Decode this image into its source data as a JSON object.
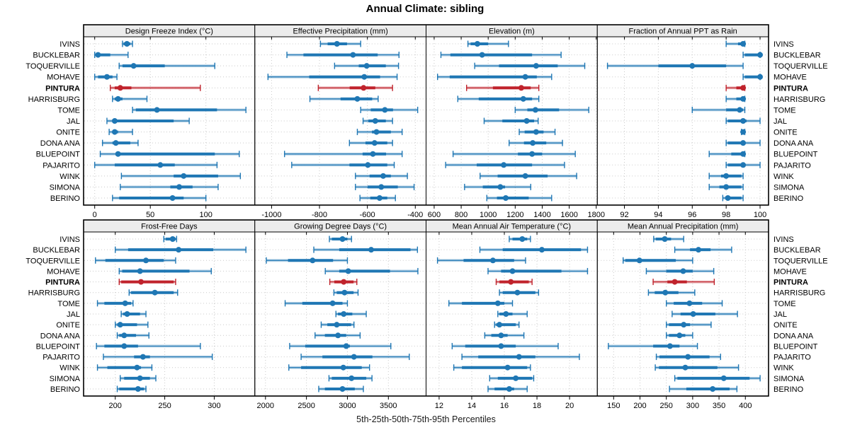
{
  "title": "Annual Climate: sibling",
  "caption": "5th-25th-50th-75th-95th Percentiles",
  "highlight_station": "PINTURA",
  "colors": {
    "series": "#1f77b4",
    "highlight": "#c0232c",
    "strip_bg": "#ececec",
    "grid": "#c9c9c9",
    "border": "#000000"
  },
  "stations": [
    "IVINS",
    "BUCKLEBAR",
    "TOQUERVILLE",
    "MOHAVE",
    "PINTURA",
    "HARRISBURG",
    "TOME",
    "JAL",
    "ONITE",
    "DONA ANA",
    "BLUEPOINT",
    "PAJARITO",
    "WINK",
    "SIMONA",
    "BERINO"
  ],
  "chart_data": {
    "type": "dotplot-percentiles",
    "percentiles": [
      5,
      25,
      50,
      75,
      95
    ],
    "layout": "2 rows x 4 cols trellis; stations on y axis, shared across panels",
    "panels": [
      {
        "title": "Design Freeze Index (°C)",
        "xlim": [
          -10,
          144
        ],
        "ticks": [
          0,
          50,
          100
        ],
        "values": [
          [
            25,
            26,
            29,
            32,
            34
          ],
          [
            0,
            1,
            3,
            14,
            30
          ],
          [
            22,
            25,
            35,
            63,
            108
          ],
          [
            0,
            3,
            11,
            16,
            20
          ],
          [
            14,
            18,
            23,
            33,
            95
          ],
          [
            16,
            18,
            21,
            25,
            47
          ],
          [
            34,
            37,
            56,
            110,
            136
          ],
          [
            11,
            16,
            18,
            71,
            85
          ],
          [
            13,
            17,
            18,
            21,
            34
          ],
          [
            7,
            16,
            19,
            32,
            39
          ],
          [
            5,
            20,
            21,
            108,
            130
          ],
          [
            0,
            18,
            59,
            72,
            110
          ],
          [
            24,
            71,
            80,
            111,
            131
          ],
          [
            23,
            68,
            76,
            88,
            111
          ],
          [
            16,
            22,
            70,
            80,
            100
          ]
        ]
      },
      {
        "title": "Effective Precipitation (mm)",
        "xlim": [
          -1070,
          -355
        ],
        "ticks": [
          -1000,
          -800,
          -600,
          -400
        ],
        "values": [
          [
            -796,
            -766,
            -727,
            -685,
            -628
          ],
          [
            -936,
            -867,
            -660,
            -557,
            -468
          ],
          [
            -737,
            -636,
            -603,
            -523,
            -470
          ],
          [
            -1015,
            -843,
            -613,
            -547,
            -476
          ],
          [
            -805,
            -674,
            -616,
            -567,
            -495
          ],
          [
            -840,
            -712,
            -642,
            -580,
            -555
          ],
          [
            -628,
            -586,
            -527,
            -493,
            -390
          ],
          [
            -618,
            -596,
            -567,
            -523,
            -495
          ],
          [
            -642,
            -581,
            -562,
            -502,
            -455
          ],
          [
            -675,
            -608,
            -570,
            -517,
            -495
          ],
          [
            -946,
            -620,
            -577,
            -522,
            -455
          ],
          [
            -916,
            -675,
            -598,
            -517,
            -488
          ],
          [
            -650,
            -591,
            -534,
            -502,
            -433
          ],
          [
            -650,
            -599,
            -542,
            -473,
            -405
          ],
          [
            -631,
            -588,
            -549,
            -517,
            -483
          ]
        ]
      },
      {
        "title": "Elevation (m)",
        "xlim": [
          540,
          1808
        ],
        "ticks": [
          600,
          800,
          1000,
          1200,
          1400,
          1600,
          1800
        ],
        "values": [
          [
            850,
            870,
            920,
            1000,
            1150
          ],
          [
            650,
            720,
            955,
            1325,
            1540
          ],
          [
            900,
            1080,
            1355,
            1515,
            1715
          ],
          [
            625,
            715,
            1275,
            1360,
            1470
          ],
          [
            840,
            1035,
            1245,
            1315,
            1375
          ],
          [
            775,
            930,
            1260,
            1325,
            1375
          ],
          [
            1200,
            1290,
            1350,
            1525,
            1745
          ],
          [
            970,
            1105,
            1285,
            1340,
            1370
          ],
          [
            1230,
            1270,
            1355,
            1410,
            1495
          ],
          [
            1155,
            1265,
            1330,
            1430,
            1550
          ],
          [
            740,
            1220,
            1325,
            1400,
            1645
          ],
          [
            685,
            915,
            1115,
            1325,
            1565
          ],
          [
            940,
            1070,
            1275,
            1440,
            1655
          ],
          [
            825,
            960,
            1090,
            1125,
            1315
          ],
          [
            990,
            1065,
            1130,
            1300,
            1470
          ]
        ]
      },
      {
        "title": "Fraction of Annual PPT as Rain",
        "xlim": [
          90.4,
          100.5
        ],
        "ticks": [
          92,
          94,
          96,
          98,
          100
        ],
        "values": [
          [
            98,
            98.7,
            99,
            99,
            99.1
          ],
          [
            99,
            99.1,
            100,
            100,
            100
          ],
          [
            91,
            94,
            96,
            98,
            99
          ],
          [
            99,
            99.1,
            100,
            100,
            100
          ],
          [
            98,
            98.6,
            99,
            99,
            99.1
          ],
          [
            98,
            98.6,
            99,
            99,
            99.1
          ],
          [
            96,
            98,
            98.8,
            99,
            99.1
          ],
          [
            98,
            98.1,
            99,
            99.2,
            100
          ],
          [
            98.9,
            99,
            99,
            99,
            99.1
          ],
          [
            98,
            98.1,
            99,
            99.1,
            100
          ],
          [
            97,
            98.3,
            99,
            99,
            99.1
          ],
          [
            98,
            98.1,
            99,
            99.1,
            100
          ],
          [
            97,
            97.7,
            98,
            98.9,
            99
          ],
          [
            97,
            97.6,
            98,
            98.9,
            99
          ],
          [
            97.8,
            98,
            98.1,
            98.9,
            99
          ]
        ]
      },
      {
        "title": "Frost-Free Days",
        "xlim": [
          168,
          341
        ],
        "ticks": [
          200,
          250,
          300
        ],
        "values": [
          [
            249,
            251,
            258,
            261,
            262
          ],
          [
            200,
            213,
            264,
            299,
            332
          ],
          [
            180,
            190,
            231,
            249,
            261
          ],
          [
            204,
            207,
            225,
            275,
            297
          ],
          [
            204,
            206,
            226,
            259,
            261
          ],
          [
            214,
            216,
            240,
            259,
            263
          ],
          [
            182,
            189,
            210,
            216,
            218
          ],
          [
            206,
            208,
            212,
            225,
            231
          ],
          [
            200,
            202,
            205,
            222,
            233
          ],
          [
            202,
            204,
            209,
            221,
            234
          ],
          [
            181,
            189,
            209,
            223,
            286
          ],
          [
            188,
            219,
            228,
            235,
            298
          ],
          [
            182,
            192,
            222,
            226,
            237
          ],
          [
            205,
            209,
            225,
            235,
            241
          ],
          [
            202,
            204,
            223,
            229,
            231
          ]
        ]
      },
      {
        "title": "Growing Degree Days (°C)",
        "xlim": [
          1870,
          3960
        ],
        "ticks": [
          2000,
          2500,
          3000,
          3500
        ],
        "values": [
          [
            2780,
            2810,
            2940,
            3000,
            3050
          ],
          [
            2590,
            2900,
            3290,
            3770,
            3855
          ],
          [
            2010,
            2275,
            2575,
            2825,
            3000
          ],
          [
            2730,
            2900,
            3010,
            3520,
            3860
          ],
          [
            2785,
            2840,
            2955,
            3075,
            3115
          ],
          [
            2835,
            2870,
            2965,
            3075,
            3130
          ],
          [
            2240,
            2450,
            2820,
            2940,
            3000
          ],
          [
            2860,
            2885,
            2955,
            3060,
            3230
          ],
          [
            2680,
            2755,
            2870,
            3045,
            3080
          ],
          [
            2605,
            2725,
            2885,
            2985,
            3155
          ],
          [
            2295,
            2485,
            2985,
            3030,
            3530
          ],
          [
            2435,
            2695,
            3080,
            3305,
            3755
          ],
          [
            2285,
            2435,
            2950,
            3175,
            3270
          ],
          [
            2775,
            2810,
            3050,
            3230,
            3300
          ],
          [
            2650,
            2725,
            2940,
            3090,
            3195
          ]
        ]
      },
      {
        "title": "Mean Annual Air Temperature (°C)",
        "xlim": [
          11.2,
          21.7
        ],
        "ticks": [
          12,
          14,
          16,
          18,
          20
        ],
        "values": [
          [
            16.3,
            16.5,
            17.1,
            17.4,
            17.6
          ],
          [
            14.5,
            15.9,
            18.3,
            20.7,
            21.1
          ],
          [
            11.9,
            13.5,
            15.3,
            16.6,
            17.3
          ],
          [
            15.0,
            15.8,
            16.5,
            19.5,
            21.1
          ],
          [
            15.5,
            15.7,
            16.4,
            17.5,
            17.7
          ],
          [
            15.7,
            15.9,
            16.8,
            17.9,
            18.1
          ],
          [
            12.6,
            13.4,
            15.6,
            16.0,
            16.5
          ],
          [
            15.6,
            15.7,
            16.1,
            16.5,
            17.4
          ],
          [
            15.4,
            15.5,
            15.7,
            16.7,
            16.9
          ],
          [
            14.8,
            15.2,
            15.8,
            16.2,
            17.2
          ],
          [
            12.8,
            13.6,
            15.8,
            16.7,
            19.3
          ],
          [
            13.4,
            14.4,
            16.9,
            17.9,
            20.6
          ],
          [
            12.9,
            13.4,
            16.2,
            17.4,
            17.6
          ],
          [
            15.1,
            15.6,
            16.7,
            17.7,
            17.8
          ],
          [
            15.0,
            15.4,
            16.3,
            16.6,
            17.4
          ]
        ]
      },
      {
        "title": "Mean Annual Precipitation (mm)",
        "xlim": [
          119,
          444
        ],
        "ticks": [
          150,
          200,
          250,
          300,
          350,
          400
        ],
        "values": [
          [
            226,
            230,
            247,
            259,
            283
          ],
          [
            266,
            295,
            311,
            334,
            374
          ],
          [
            168,
            172,
            199,
            268,
            300
          ],
          [
            212,
            250,
            282,
            300,
            340
          ],
          [
            225,
            252,
            266,
            289,
            341
          ],
          [
            216,
            228,
            248,
            273,
            304
          ],
          [
            250,
            264,
            294,
            318,
            356
          ],
          [
            261,
            277,
            301,
            343,
            385
          ],
          [
            250,
            255,
            283,
            295,
            335
          ],
          [
            250,
            255,
            275,
            286,
            300
          ],
          [
            140,
            225,
            257,
            275,
            309
          ],
          [
            231,
            237,
            291,
            332,
            353
          ],
          [
            229,
            236,
            286,
            347,
            387
          ],
          [
            266,
            271,
            359,
            408,
            428
          ],
          [
            256,
            288,
            338,
            370,
            384
          ]
        ]
      }
    ]
  }
}
